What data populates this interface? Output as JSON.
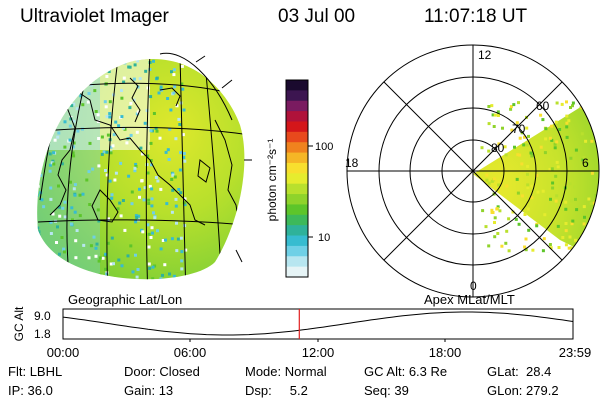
{
  "header": {
    "title": "Ultraviolet Imager",
    "date": "03 Jul 00",
    "time": "11:07:18 UT"
  },
  "colorbar": {
    "label": "photon cm⁻²s⁻¹",
    "ticks": [
      {
        "label": "100",
        "value": 100
      },
      {
        "label": "10",
        "value": 10
      }
    ],
    "colors": [
      "#1a0a2e",
      "#3c1550",
      "#7a1b60",
      "#b0123a",
      "#d4161a",
      "#e8491c",
      "#f0821e",
      "#f5b626",
      "#f8df2e",
      "#e6ec2e",
      "#b9e02d",
      "#8fd32b",
      "#5dc52a",
      "#3db95a",
      "#2fb29a",
      "#37bcd0",
      "#6fd0e6",
      "#b7e6f0",
      "#e6f4f6"
    ]
  },
  "geo_panel": {
    "label": "Geographic Lat/Lon"
  },
  "polar_panel": {
    "label": "Apex MLat/MLT",
    "mlt_labels": {
      "top": "12",
      "left": "18",
      "right": "6",
      "bottom": "0"
    },
    "lat_labels": [
      "60",
      "70",
      "80"
    ]
  },
  "altitude_plot": {
    "ylabel": "GC Alt",
    "ytick_top": "9.0",
    "ytick_bottom": "1.8",
    "xticks": [
      "00:00",
      "06:00",
      "12:00",
      "18:00",
      "23:59"
    ],
    "current_time_hours": 11.12,
    "marker_color": "#e02020"
  },
  "info": {
    "filter": {
      "label": "Flt:",
      "value": "LBHL"
    },
    "door": {
      "label": "Door:",
      "value": "Closed"
    },
    "mode": {
      "label": "Mode:",
      "value": "Normal"
    },
    "gc_alt": {
      "label": "GC Alt:",
      "value": "6.3 Re"
    },
    "glat": {
      "label": "GLat:",
      "value": "28.4"
    },
    "ip": {
      "label": "IP:",
      "value": "36.0"
    },
    "gain": {
      "label": "Gain:",
      "value": "13"
    },
    "dsp": {
      "label": "Dsp:",
      "value": "5.2"
    },
    "seq": {
      "label": "Seq:",
      "value": "39"
    },
    "glon": {
      "label": "GLon:",
      "value": "279.2"
    }
  }
}
